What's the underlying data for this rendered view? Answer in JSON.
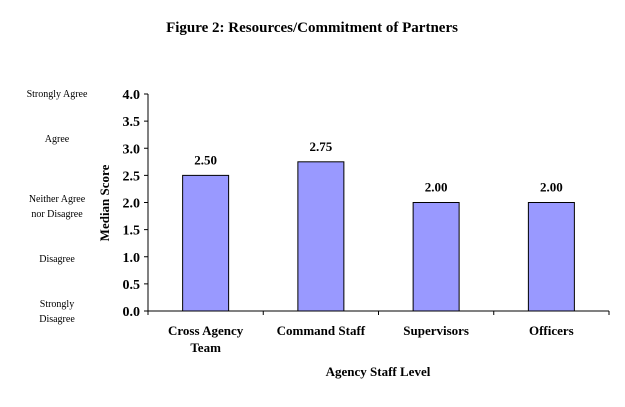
{
  "chart_data": {
    "type": "bar",
    "title": "Figure 2: Resources/Commitment of Partners",
    "xlabel": "Agency Staff Level",
    "ylabel": "Median Score",
    "categories": [
      [
        "Cross Agency",
        "Team"
      ],
      [
        "Command Staff"
      ],
      [
        "Supervisors"
      ],
      [
        "Officers"
      ]
    ],
    "values": [
      2.5,
      2.75,
      2.0,
      2.0
    ],
    "data_labels": [
      "2.50",
      "2.75",
      "2.00",
      "2.00"
    ],
    "ylim": [
      0,
      4
    ],
    "yticks": [
      "0.0",
      "0.5",
      "1.0",
      "1.5",
      "2.0",
      "2.5",
      "3.0",
      "3.5",
      "4.0"
    ],
    "scale_labels": [
      {
        "lines": [
          "Strongly Agree"
        ],
        "value": 4.0
      },
      {
        "lines": [
          "Agree"
        ],
        "value": 3.2
      },
      {
        "lines": [
          "Neither Agree",
          "nor Disagree"
        ],
        "value": 2.0
      },
      {
        "lines": [
          "Disagree"
        ],
        "value": 1.0
      },
      {
        "lines": [
          "Strongly",
          "Disagree"
        ],
        "value": 0.0
      }
    ],
    "grid": false,
    "legend": "none",
    "colors": {
      "bar": "#9999ff",
      "bar_edge": "#000000"
    }
  }
}
